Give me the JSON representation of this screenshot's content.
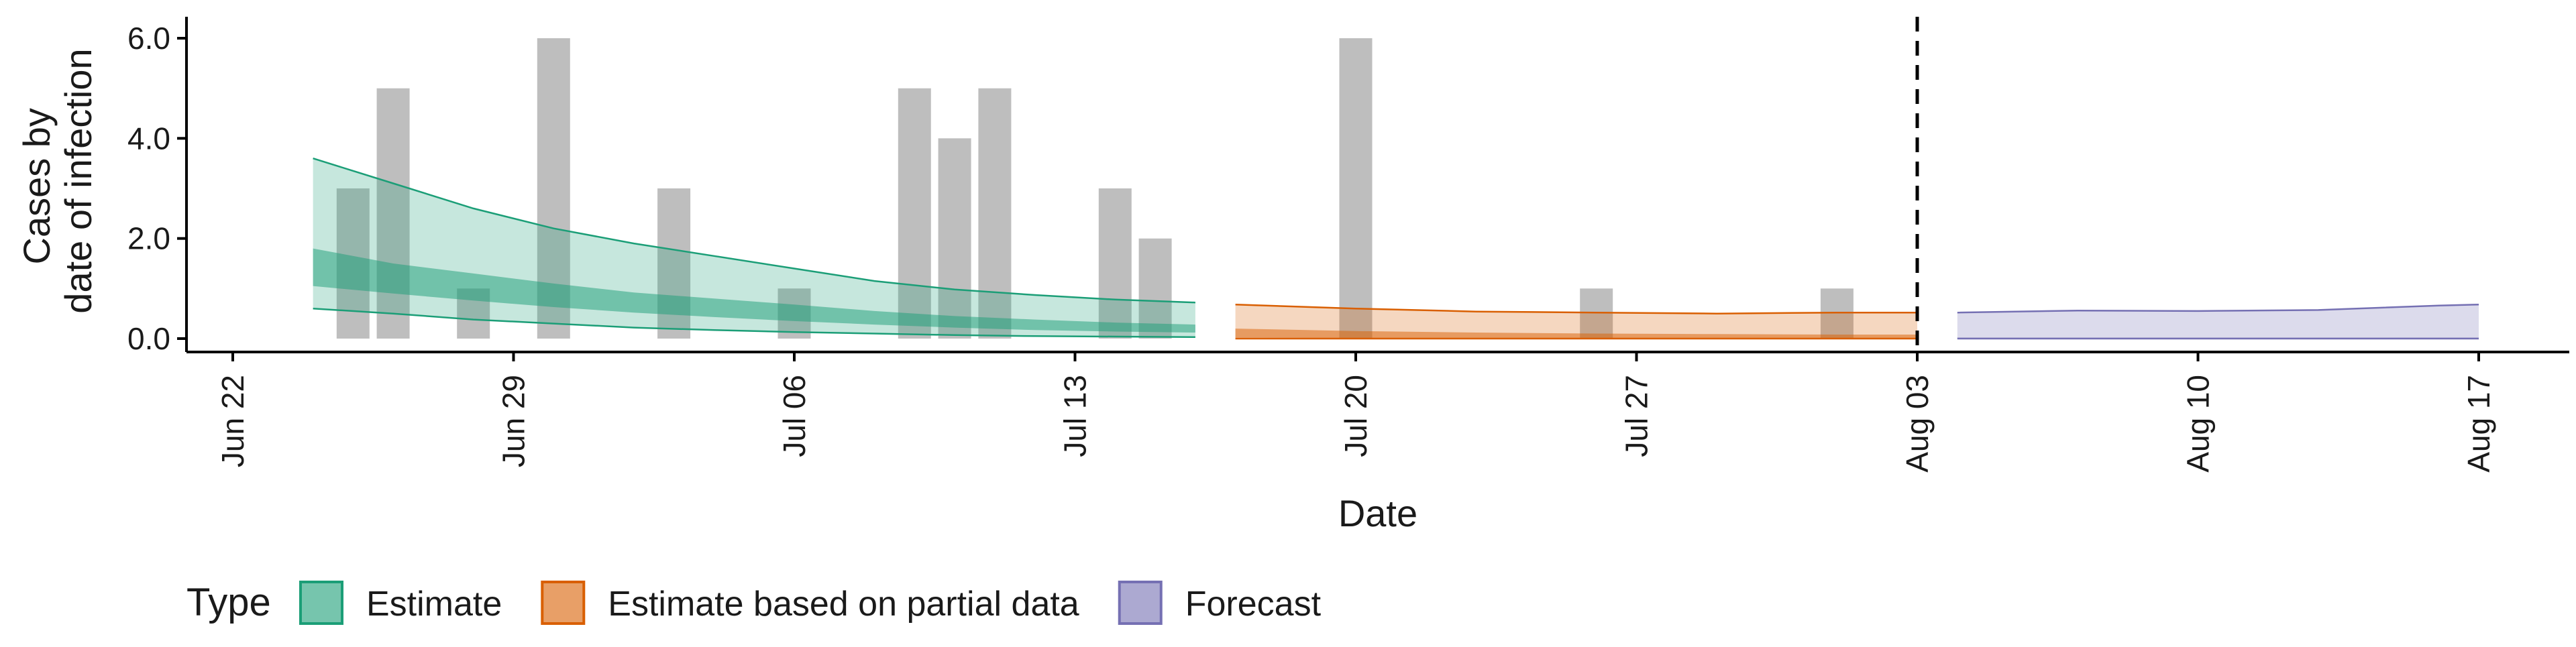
{
  "chart_data": {
    "type": "bar",
    "xlabel": "Date",
    "ylabel_lines": [
      "Cases by",
      "date of infection"
    ],
    "ylim": [
      0,
      6.0
    ],
    "y_ticks": [
      "0.0",
      "2.0",
      "4.0",
      "6.0"
    ],
    "x_tick_labels": [
      "Jun 22",
      "Jun 29",
      "Jul 06",
      "Jul 13",
      "Jul 20",
      "Jul 27",
      "Aug 03",
      "Aug 10",
      "Aug 17"
    ],
    "x_tick_dates": [
      "2020-06-22",
      "2020-06-29",
      "2020-07-06",
      "2020-07-13",
      "2020-07-20",
      "2020-07-27",
      "2020-08-03",
      "2020-08-10",
      "2020-08-17"
    ],
    "vline_date": "2020-08-03",
    "bar_color": "#bebebe",
    "bars": [
      {
        "date": "2020-06-25",
        "value": 3
      },
      {
        "date": "2020-06-26",
        "value": 5
      },
      {
        "date": "2020-06-28",
        "value": 1
      },
      {
        "date": "2020-06-30",
        "value": 6
      },
      {
        "date": "2020-07-03",
        "value": 3
      },
      {
        "date": "2020-07-06",
        "value": 1
      },
      {
        "date": "2020-07-09",
        "value": 5
      },
      {
        "date": "2020-07-10",
        "value": 4
      },
      {
        "date": "2020-07-11",
        "value": 5
      },
      {
        "date": "2020-07-14",
        "value": 3
      },
      {
        "date": "2020-07-15",
        "value": 2
      },
      {
        "date": "2020-07-20",
        "value": 6
      },
      {
        "date": "2020-07-26",
        "value": 1
      },
      {
        "date": "2020-08-01",
        "value": 1
      }
    ],
    "legend_title": "Type",
    "bands": [
      {
        "name": "Estimate",
        "fill": "#1b9e77",
        "stroke": "#1b9e77",
        "dates": [
          "2020-06-24",
          "2020-06-26",
          "2020-06-28",
          "2020-06-30",
          "2020-07-02",
          "2020-07-04",
          "2020-07-06",
          "2020-07-08",
          "2020-07-10",
          "2020-07-12",
          "2020-07-14",
          "2020-07-16"
        ],
        "outer_upper": [
          3.6,
          3.1,
          2.6,
          2.2,
          1.9,
          1.65,
          1.4,
          1.15,
          0.98,
          0.87,
          0.78,
          0.72
        ],
        "outer_lower": [
          0.6,
          0.5,
          0.38,
          0.3,
          0.22,
          0.17,
          0.13,
          0.1,
          0.07,
          0.05,
          0.04,
          0.03
        ],
        "inner_upper": [
          1.8,
          1.5,
          1.3,
          1.1,
          0.92,
          0.8,
          0.68,
          0.55,
          0.45,
          0.38,
          0.32,
          0.28
        ],
        "inner_lower": [
          1.05,
          0.9,
          0.76,
          0.63,
          0.52,
          0.43,
          0.35,
          0.28,
          0.22,
          0.17,
          0.14,
          0.12
        ]
      },
      {
        "name": "Estimate based on partial data",
        "fill": "#d95f02",
        "stroke": "#d95f02",
        "dates": [
          "2020-07-17",
          "2020-07-20",
          "2020-07-23",
          "2020-07-26",
          "2020-07-29",
          "2020-08-01",
          "2020-08-03"
        ],
        "outer_upper": [
          0.68,
          0.6,
          0.54,
          0.52,
          0.5,
          0.52,
          0.52
        ],
        "outer_lower": [
          0.0,
          0.0,
          0.0,
          0.0,
          0.0,
          0.0,
          0.0
        ],
        "inner_upper": [
          0.2,
          0.15,
          0.12,
          0.1,
          0.09,
          0.08,
          0.08
        ],
        "inner_lower": [
          0.02,
          0.01,
          0.01,
          0.01,
          0.0,
          0.0,
          0.0
        ]
      },
      {
        "name": "Forecast",
        "fill": "#7570b3",
        "stroke": "#7570b3",
        "dates": [
          "2020-08-04",
          "2020-08-07",
          "2020-08-10",
          "2020-08-13",
          "2020-08-16",
          "2020-08-17"
        ],
        "outer_upper": [
          0.52,
          0.56,
          0.55,
          0.57,
          0.66,
          0.68
        ],
        "outer_lower": [
          0.0,
          0.0,
          0.0,
          0.0,
          0.0,
          0.0
        ],
        "inner_upper": [
          0.02,
          0.02,
          0.02,
          0.02,
          0.02,
          0.02
        ],
        "inner_lower": [
          0.0,
          0.0,
          0.0,
          0.0,
          0.0,
          0.0
        ]
      }
    ]
  }
}
